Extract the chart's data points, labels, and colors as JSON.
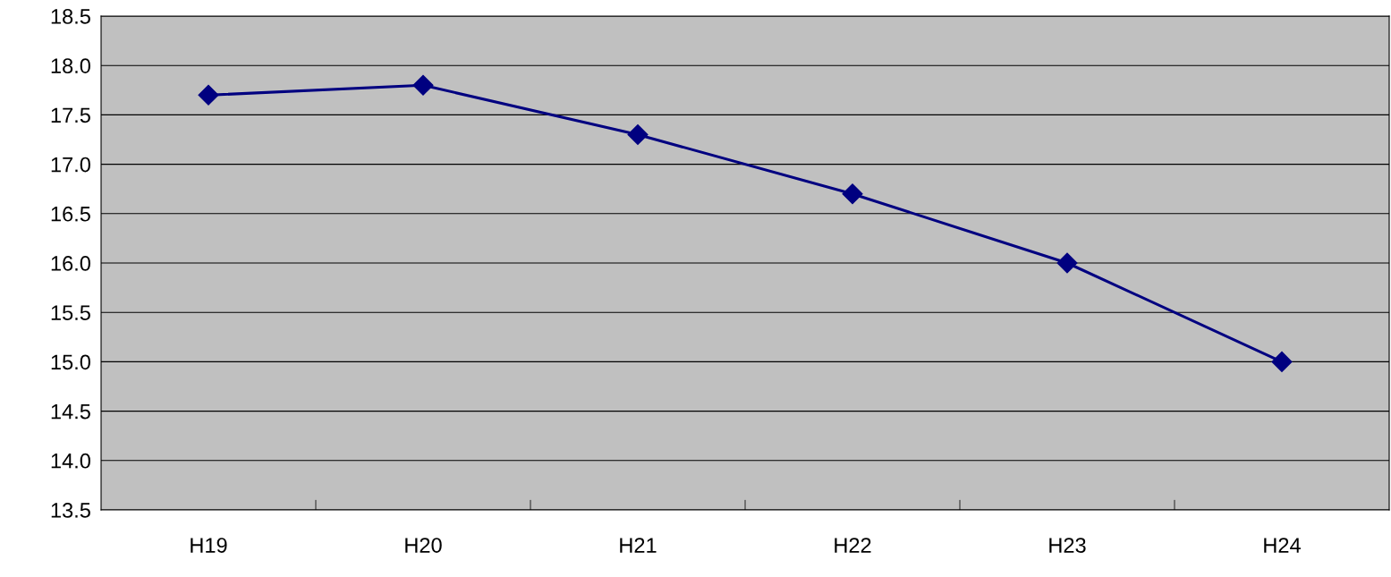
{
  "chart_data": {
    "type": "line",
    "categories": [
      "H19",
      "H20",
      "H21",
      "H22",
      "H23",
      "H24"
    ],
    "series": [
      {
        "color": "#000080",
        "values": [
          17.7,
          17.8,
          17.3,
          16.7,
          16.0,
          15.0
        ]
      }
    ],
    "ylim": [
      13.5,
      18.5
    ],
    "yticks": [
      {
        "value": 13.5,
        "label": "13.5"
      },
      {
        "value": 14.0,
        "label": "14.0"
      },
      {
        "value": 14.5,
        "label": "14.5"
      },
      {
        "value": 15.0,
        "label": "15.0"
      },
      {
        "value": 15.5,
        "label": "15.5"
      },
      {
        "value": 16.0,
        "label": "16.0"
      },
      {
        "value": 16.5,
        "label": "16.5"
      },
      {
        "value": 17.0,
        "label": "17.0"
      },
      {
        "value": 17.5,
        "label": "17.5"
      },
      {
        "value": 18.0,
        "label": "18.0"
      },
      {
        "value": 18.5,
        "label": "18.5"
      }
    ],
    "grid": "y",
    "marker": "diamond",
    "line_style": "solid"
  }
}
